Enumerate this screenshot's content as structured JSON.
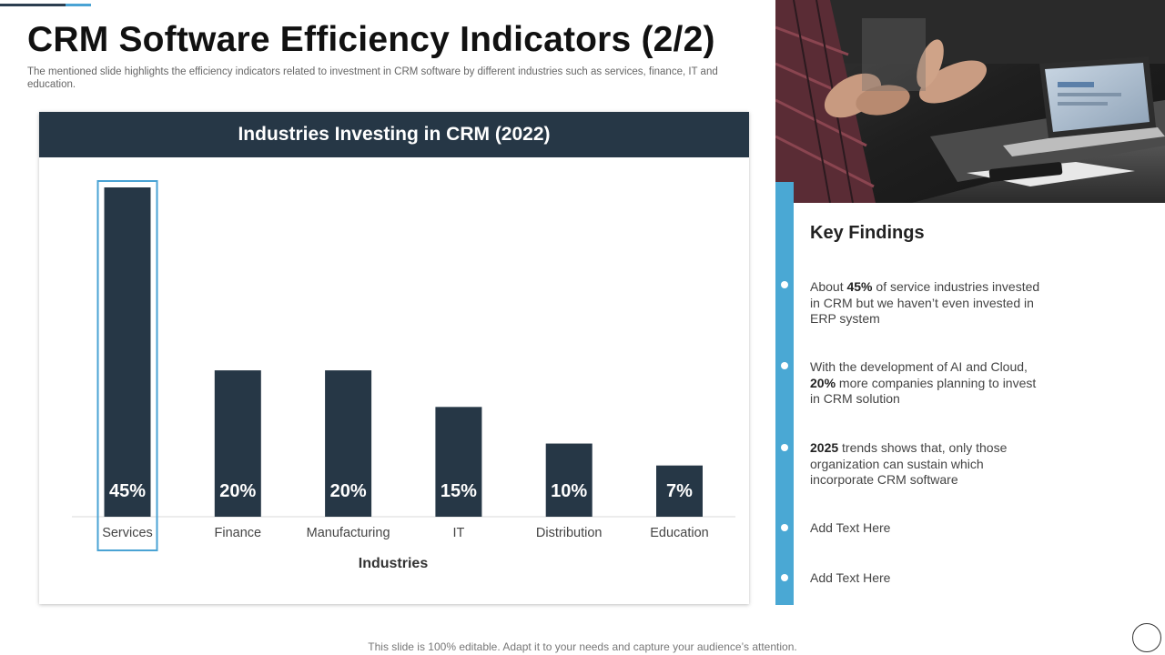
{
  "slide": {
    "title": "CRM Software Efficiency Indicators (2/2)",
    "subtitle": "The mentioned slide highlights the efficiency indicators related to investment in CRM software by different industries such as services, finance, IT and education.",
    "footer": "This slide is 100% editable. Adapt it to your needs and capture your audience’s attention."
  },
  "chart_data": {
    "type": "bar",
    "title": "Industries Investing in CRM (2022)",
    "xlabel": "Industries",
    "ylabel": "",
    "categories": [
      "Services",
      "Finance",
      "Manufacturing",
      "IT",
      "Distribution",
      "Education"
    ],
    "values": [
      45,
      20,
      20,
      15,
      10,
      7
    ],
    "value_labels": [
      "45%",
      "20%",
      "20%",
      "15%",
      "10%",
      "7%"
    ],
    "ylim": [
      0,
      45
    ],
    "highlighted_category": "Services",
    "grid": false,
    "colors": {
      "bar": "#263746",
      "highlight": "#4aa3d4",
      "header": "#263746"
    }
  },
  "key_findings": {
    "title": "Key Findings",
    "items": [
      {
        "pre": "About ",
        "bold": "45%",
        "post": " of service industries invested in CRM but we haven’t even invested in ERP system"
      },
      {
        "pre": "With the development of AI and Cloud, ",
        "bold": "20%",
        "post": " more companies planning to invest in CRM solution"
      },
      {
        "pre": "",
        "bold": "2025",
        "post": " trends shows that, only those organization can sustain which incorporate CRM software"
      },
      {
        "pre": "Add Text Here",
        "bold": "",
        "post": ""
      },
      {
        "pre": "Add Text Here",
        "bold": "",
        "post": ""
      }
    ]
  },
  "colors": {
    "accent": "#4aa8d4",
    "dark": "#263746"
  }
}
